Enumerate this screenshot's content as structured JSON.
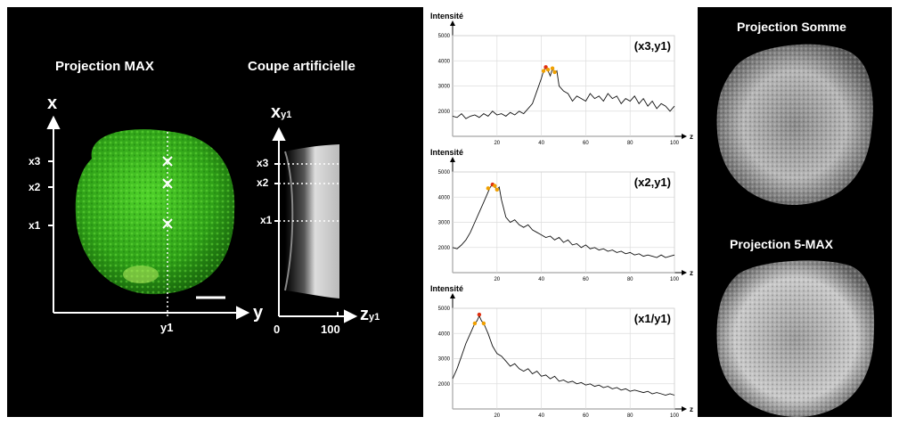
{
  "left": {
    "max_title": "Projection MAX",
    "cut_title": "Coupe artificielle",
    "axis_x": "x",
    "axis_y": "y",
    "y1": "y1",
    "ticks": [
      "x3",
      "x2",
      "x1"
    ],
    "cut_axis": "x",
    "cut_axis_sub": "y1",
    "cut_ticks": [
      "x3",
      "x2",
      "x1"
    ],
    "z_label": "z",
    "z_sub": "y1",
    "z_ticks": [
      "0",
      "100"
    ]
  },
  "right": {
    "sum_title": "Projection Somme",
    "max5_title": "Projection 5-MAX"
  },
  "chart_data": [
    {
      "type": "line",
      "ylabel": "Intensité",
      "xlabel": "z",
      "annotation": "(x3,y1)",
      "xlim": [
        0,
        100
      ],
      "ylim": [
        1000,
        5000
      ],
      "xticks": [
        20,
        40,
        60,
        80,
        100
      ],
      "yticks": [
        2000,
        3000,
        4000,
        5000
      ],
      "grid": true,
      "x": [
        0,
        2,
        4,
        6,
        8,
        10,
        12,
        14,
        16,
        18,
        20,
        22,
        24,
        26,
        28,
        30,
        32,
        34,
        36,
        38,
        40,
        41,
        42,
        43,
        44,
        45,
        46,
        47,
        48,
        50,
        52,
        54,
        56,
        58,
        60,
        62,
        64,
        66,
        68,
        70,
        72,
        74,
        76,
        78,
        80,
        82,
        84,
        86,
        88,
        90,
        92,
        94,
        96,
        98,
        100
      ],
      "values": [
        1800,
        1750,
        1900,
        1700,
        1800,
        1850,
        1750,
        1900,
        1800,
        2000,
        1850,
        1900,
        1800,
        1950,
        1850,
        2000,
        1900,
        2100,
        2300,
        2800,
        3300,
        3600,
        3700,
        3600,
        3400,
        3700,
        3500,
        3600,
        3000,
        2800,
        2700,
        2400,
        2600,
        2500,
        2400,
        2700,
        2500,
        2600,
        2400,
        2700,
        2500,
        2600,
        2300,
        2500,
        2400,
        2600,
        2300,
        2500,
        2200,
        2400,
        2100,
        2300,
        2200,
        2000,
        2200
      ],
      "peak_markers": [
        [
          41,
          3600
        ],
        [
          42,
          3750
        ],
        [
          43,
          3650
        ],
        [
          45,
          3700
        ],
        [
          46,
          3550
        ]
      ]
    },
    {
      "type": "line",
      "ylabel": "Intensité",
      "xlabel": "z",
      "annotation": "(x2,y1)",
      "xlim": [
        0,
        100
      ],
      "ylim": [
        1000,
        5000
      ],
      "xticks": [
        20,
        40,
        60,
        80,
        100
      ],
      "yticks": [
        2000,
        3000,
        4000,
        5000
      ],
      "grid": true,
      "x": [
        0,
        2,
        4,
        6,
        8,
        10,
        12,
        14,
        16,
        17,
        18,
        19,
        20,
        21,
        22,
        24,
        26,
        28,
        30,
        32,
        34,
        36,
        38,
        40,
        42,
        44,
        46,
        48,
        50,
        52,
        54,
        56,
        58,
        60,
        62,
        64,
        66,
        68,
        70,
        72,
        74,
        76,
        78,
        80,
        82,
        84,
        86,
        88,
        90,
        92,
        94,
        96,
        98,
        100
      ],
      "values": [
        2000,
        1950,
        2100,
        2300,
        2600,
        3000,
        3400,
        3800,
        4200,
        4400,
        4500,
        4400,
        4300,
        4400,
        3900,
        3200,
        3000,
        3100,
        2900,
        2800,
        2900,
        2700,
        2600,
        2500,
        2400,
        2450,
        2300,
        2400,
        2200,
        2300,
        2100,
        2150,
        2000,
        2100,
        1950,
        2000,
        1900,
        1950,
        1850,
        1900,
        1800,
        1850,
        1750,
        1800,
        1700,
        1750,
        1650,
        1700,
        1650,
        1600,
        1700,
        1600,
        1650,
        1700
      ],
      "peak_markers": [
        [
          16,
          4350
        ],
        [
          18,
          4500
        ],
        [
          19,
          4450
        ],
        [
          20,
          4300
        ]
      ]
    },
    {
      "type": "line",
      "ylabel": "Intensité",
      "xlabel": "z",
      "annotation": "(x1/y1)",
      "xlim": [
        0,
        100
      ],
      "ylim": [
        1000,
        5000
      ],
      "xticks": [
        20,
        40,
        60,
        80,
        100
      ],
      "yticks": [
        2000,
        3000,
        4000,
        5000
      ],
      "grid": true,
      "x": [
        0,
        2,
        4,
        6,
        8,
        10,
        11,
        12,
        13,
        14,
        16,
        18,
        20,
        22,
        24,
        26,
        28,
        30,
        32,
        34,
        36,
        38,
        40,
        42,
        44,
        46,
        48,
        50,
        52,
        54,
        56,
        58,
        60,
        62,
        64,
        66,
        68,
        70,
        72,
        74,
        76,
        78,
        80,
        82,
        84,
        86,
        88,
        90,
        92,
        94,
        96,
        98,
        100
      ],
      "values": [
        2200,
        2600,
        3100,
        3600,
        4000,
        4400,
        4500,
        4700,
        4500,
        4400,
        4000,
        3500,
        3200,
        3100,
        2900,
        2700,
        2800,
        2600,
        2500,
        2600,
        2400,
        2500,
        2300,
        2350,
        2200,
        2300,
        2100,
        2150,
        2050,
        2100,
        2000,
        2050,
        1950,
        2000,
        1900,
        1950,
        1850,
        1900,
        1800,
        1850,
        1750,
        1800,
        1700,
        1750,
        1700,
        1650,
        1700,
        1600,
        1650,
        1600,
        1550,
        1600,
        1550
      ],
      "peak_markers": [
        [
          10,
          4400
        ],
        [
          12,
          4750
        ],
        [
          14,
          4400
        ]
      ]
    }
  ],
  "colors": {
    "sphere_green": "#3fbf1f",
    "marker_red": "#e03010",
    "marker_orange": "#f0a000"
  }
}
